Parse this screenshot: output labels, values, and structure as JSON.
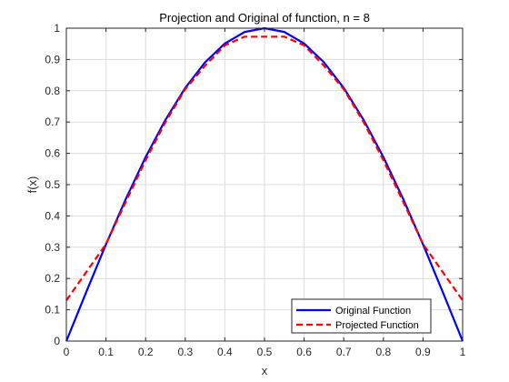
{
  "chart_data": {
    "type": "line",
    "title": "Projection and Original of function, n = 8",
    "xlabel": "x",
    "ylabel": "f(x)",
    "xlim": [
      0,
      1
    ],
    "ylim": [
      0,
      1
    ],
    "xticks": [
      "0",
      "0.1",
      "0.2",
      "0.3",
      "0.4",
      "0.5",
      "0.6",
      "0.7",
      "0.8",
      "0.9",
      "1"
    ],
    "yticks": [
      "0",
      "0.1",
      "0.2",
      "0.3",
      "0.4",
      "0.5",
      "0.6",
      "0.7",
      "0.8",
      "0.9",
      "1"
    ],
    "grid": true,
    "legend_position": "bottom-right",
    "x": [
      0,
      0.05,
      0.1,
      0.15,
      0.2,
      0.25,
      0.3,
      0.35,
      0.4,
      0.45,
      0.5,
      0.55,
      0.6,
      0.65,
      0.7,
      0.75,
      0.8,
      0.85,
      0.9,
      0.95,
      1
    ],
    "series": [
      {
        "name": "Original Function",
        "color": "#0000ff",
        "style": "solid",
        "values": [
          0,
          0.156,
          0.309,
          0.454,
          0.588,
          0.707,
          0.809,
          0.891,
          0.951,
          0.988,
          1.0,
          0.988,
          0.951,
          0.891,
          0.809,
          0.707,
          0.588,
          0.454,
          0.309,
          0.156,
          0
        ]
      },
      {
        "name": "Projected Function",
        "color": "#ff0000",
        "style": "dashed",
        "values": [
          0.13,
          0.22,
          0.31,
          0.445,
          0.578,
          0.7,
          0.805,
          0.88,
          0.945,
          0.973,
          0.973,
          0.973,
          0.945,
          0.88,
          0.805,
          0.7,
          0.578,
          0.445,
          0.31,
          0.22,
          0.13
        ]
      }
    ]
  }
}
